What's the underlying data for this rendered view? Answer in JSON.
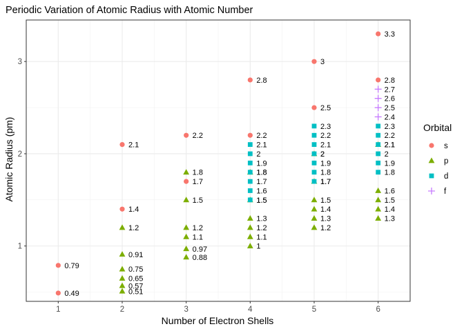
{
  "chart_data": {
    "type": "scatter",
    "title": "Periodic Variation of Atomic Radius with Atomic Number",
    "xlabel": "Number of Electron Shells",
    "ylabel": "Atomic Radius (pm)",
    "xlim": [
      0.5,
      6.5
    ],
    "ylim": [
      0.4,
      3.45
    ],
    "x_ticks": [
      1,
      2,
      3,
      4,
      5,
      6
    ],
    "y_ticks": [
      1,
      2,
      3
    ],
    "grid": true,
    "legend": {
      "title": "Orbital",
      "placement": "right",
      "entries": [
        {
          "key": "s",
          "label": "s"
        },
        {
          "key": "p",
          "label": "p"
        },
        {
          "key": "d",
          "label": "d"
        },
        {
          "key": "f",
          "label": "f"
        }
      ]
    },
    "colors": {
      "s": "#F8766D",
      "p": "#7CAE00",
      "d": "#00BFC4",
      "f": "#C77CFF"
    },
    "series": [
      {
        "name": "s",
        "points": [
          {
            "x": 1,
            "y": 0.79,
            "label": "0.79"
          },
          {
            "x": 1,
            "y": 0.49,
            "label": "0.49"
          },
          {
            "x": 2,
            "y": 2.1,
            "label": "2.1"
          },
          {
            "x": 2,
            "y": 1.4,
            "label": "1.4"
          },
          {
            "x": 3,
            "y": 2.2,
            "label": "2.2"
          },
          {
            "x": 3,
            "y": 1.7,
            "label": "1.7"
          },
          {
            "x": 4,
            "y": 2.8,
            "label": "2.8"
          },
          {
            "x": 4,
            "y": 2.2,
            "label": "2.2"
          },
          {
            "x": 5,
            "y": 3.0,
            "label": "3"
          },
          {
            "x": 5,
            "y": 2.5,
            "label": "2.5"
          },
          {
            "x": 6,
            "y": 3.3,
            "label": "3.3"
          },
          {
            "x": 6,
            "y": 2.8,
            "label": "2.8"
          }
        ]
      },
      {
        "name": "p",
        "points": [
          {
            "x": 2,
            "y": 1.2,
            "label": "1.2"
          },
          {
            "x": 2,
            "y": 0.91,
            "label": "0.91"
          },
          {
            "x": 2,
            "y": 0.75,
            "label": "0.75"
          },
          {
            "x": 2,
            "y": 0.65,
            "label": "0.65"
          },
          {
            "x": 2,
            "y": 0.57,
            "label": "0.57"
          },
          {
            "x": 2,
            "y": 0.51,
            "label": "0.51"
          },
          {
            "x": 3,
            "y": 1.8,
            "label": "1.8"
          },
          {
            "x": 3,
            "y": 1.5,
            "label": "1.5"
          },
          {
            "x": 3,
            "y": 1.2,
            "label": "1.2"
          },
          {
            "x": 3,
            "y": 1.1,
            "label": "1.1"
          },
          {
            "x": 3,
            "y": 0.97,
            "label": "0.97"
          },
          {
            "x": 3,
            "y": 0.88,
            "label": "0.88"
          },
          {
            "x": 4,
            "y": 1.8,
            "label": "1.8"
          },
          {
            "x": 4,
            "y": 1.5,
            "label": "1.5"
          },
          {
            "x": 4,
            "y": 1.3,
            "label": "1.3"
          },
          {
            "x": 4,
            "y": 1.2,
            "label": "1.2"
          },
          {
            "x": 4,
            "y": 1.1,
            "label": "1.1"
          },
          {
            "x": 4,
            "y": 1.0,
            "label": "1"
          },
          {
            "x": 5,
            "y": 2.0,
            "label": "2"
          },
          {
            "x": 5,
            "y": 1.7,
            "label": "1.7"
          },
          {
            "x": 5,
            "y": 1.5,
            "label": "1.5"
          },
          {
            "x": 5,
            "y": 1.4,
            "label": "1.4"
          },
          {
            "x": 5,
            "y": 1.3,
            "label": "1.3"
          },
          {
            "x": 5,
            "y": 1.2,
            "label": "1.2"
          },
          {
            "x": 6,
            "y": 2.1,
            "label": "2.1"
          },
          {
            "x": 6,
            "y": 1.6,
            "label": "1.6"
          },
          {
            "x": 6,
            "y": 1.5,
            "label": "1.5"
          },
          {
            "x": 6,
            "y": 1.4,
            "label": "1.4"
          },
          {
            "x": 6,
            "y": 1.3,
            "label": "1.3"
          }
        ]
      },
      {
        "name": "d",
        "points": [
          {
            "x": 4,
            "y": 2.1,
            "label": "2.1"
          },
          {
            "x": 4,
            "y": 2.0,
            "label": "2"
          },
          {
            "x": 4,
            "y": 1.9,
            "label": "1.9"
          },
          {
            "x": 4,
            "y": 1.8,
            "label": "1.8"
          },
          {
            "x": 4,
            "y": 1.7,
            "label": "1.7"
          },
          {
            "x": 4,
            "y": 1.6,
            "label": "1.6"
          },
          {
            "x": 4,
            "y": 1.5,
            "label": "1.5"
          },
          {
            "x": 5,
            "y": 2.3,
            "label": "2.3"
          },
          {
            "x": 5,
            "y": 2.2,
            "label": "2.2"
          },
          {
            "x": 5,
            "y": 2.1,
            "label": "2.1"
          },
          {
            "x": 5,
            "y": 2.0,
            "label": "2"
          },
          {
            "x": 5,
            "y": 1.9,
            "label": "1.9"
          },
          {
            "x": 5,
            "y": 1.8,
            "label": "1.8"
          },
          {
            "x": 5,
            "y": 1.7,
            "label": "1.7"
          },
          {
            "x": 6,
            "y": 2.3,
            "label": "2.3"
          },
          {
            "x": 6,
            "y": 2.2,
            "label": "2.2"
          },
          {
            "x": 6,
            "y": 2.1,
            "label": "2.1"
          },
          {
            "x": 6,
            "y": 2.0,
            "label": "2"
          },
          {
            "x": 6,
            "y": 1.9,
            "label": "1.9"
          },
          {
            "x": 6,
            "y": 1.8,
            "label": "1.8"
          }
        ]
      },
      {
        "name": "f",
        "points": [
          {
            "x": 6,
            "y": 2.7,
            "label": "2.7"
          },
          {
            "x": 6,
            "y": 2.6,
            "label": "2.6"
          },
          {
            "x": 6,
            "y": 2.5,
            "label": "2.5"
          },
          {
            "x": 6,
            "y": 2.4,
            "label": "2.4"
          }
        ]
      }
    ]
  }
}
